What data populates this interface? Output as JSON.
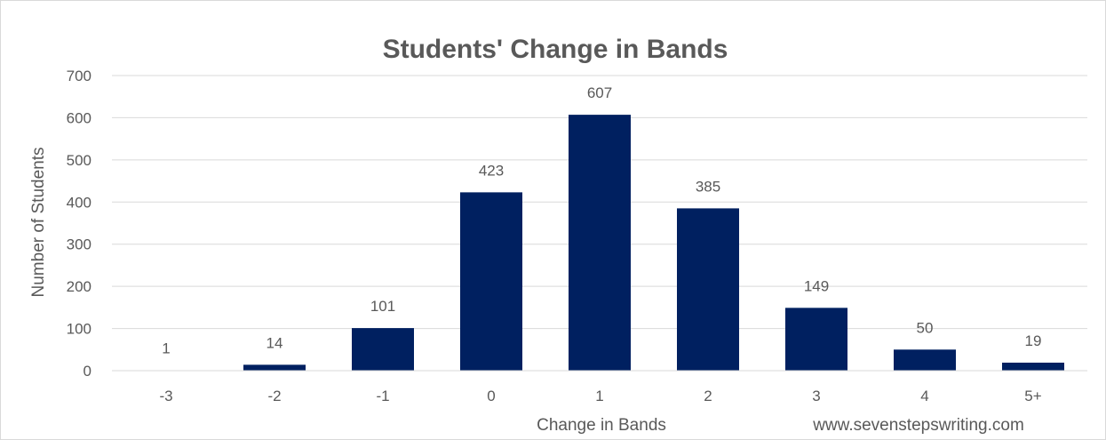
{
  "chart_data": {
    "type": "bar",
    "title": "Students' Change in Bands",
    "xlabel": "Change in Bands",
    "ylabel": "Number of Students",
    "categories": [
      "-3",
      "-2",
      "-1",
      "0",
      "1",
      "2",
      "3",
      "4",
      "5+"
    ],
    "values": [
      1,
      14,
      101,
      423,
      607,
      385,
      149,
      50,
      19
    ],
    "ylim": [
      0,
      700
    ],
    "yticks": [
      0,
      100,
      200,
      300,
      400,
      500,
      600,
      700
    ],
    "grid": true,
    "legend": "none",
    "bar_color": "#002060",
    "grid_color": "#d9d9d9",
    "text_color": "#595959"
  },
  "footer": {
    "website": "www.sevenstepswriting.com"
  }
}
